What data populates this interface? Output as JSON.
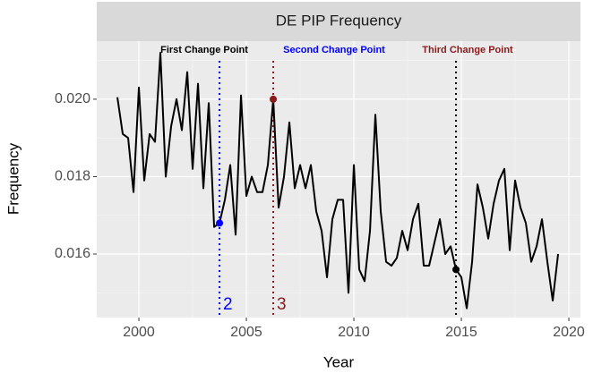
{
  "chart_data": {
    "type": "line",
    "title": "DE PIP Frequency",
    "x_label": "Year",
    "y_label": "Frequency",
    "x": [
      1999,
      1999.25,
      1999.5,
      1999.75,
      2000,
      2000.25,
      2000.5,
      2000.75,
      2001,
      2001.25,
      2001.5,
      2001.75,
      2002,
      2002.25,
      2002.5,
      2002.75,
      2003,
      2003.25,
      2003.5,
      2003.75,
      2004,
      2004.25,
      2004.5,
      2004.75,
      2005,
      2005.25,
      2005.5,
      2005.75,
      2006,
      2006.25,
      2006.5,
      2006.75,
      2007,
      2007.25,
      2007.5,
      2007.75,
      2008,
      2008.25,
      2008.5,
      2008.75,
      2009,
      2009.25,
      2009.5,
      2009.75,
      2010,
      2010.25,
      2010.5,
      2010.75,
      2011,
      2011.25,
      2011.5,
      2011.75,
      2012,
      2012.25,
      2012.5,
      2012.75,
      2013,
      2013.25,
      2013.5,
      2013.75,
      2014,
      2014.25,
      2014.5,
      2014.75,
      2015,
      2015.25,
      2015.5,
      2015.75,
      2016,
      2016.25,
      2016.5,
      2016.75,
      2017,
      2017.25,
      2017.5,
      2017.75,
      2018,
      2018.25,
      2018.5,
      2018.75,
      2019,
      2019.25,
      2019.5
    ],
    "series": [
      {
        "color": "#000000",
        "values": [
          0.02005,
          0.0191,
          0.019,
          0.0176,
          0.0203,
          0.0179,
          0.0191,
          0.0189,
          0.0212,
          0.018,
          0.0193,
          0.02,
          0.0192,
          0.0207,
          0.0182,
          0.0204,
          0.0177,
          0.0199,
          0.0167,
          0.0168,
          0.0174,
          0.0183,
          0.0165,
          0.0201,
          0.0175,
          0.018,
          0.0176,
          0.0176,
          0.0183,
          0.02,
          0.0172,
          0.018,
          0.0194,
          0.0177,
          0.0183,
          0.0177,
          0.0183,
          0.0171,
          0.0166,
          0.0154,
          0.0169,
          0.0174,
          0.0174,
          0.015,
          0.0183,
          0.0156,
          0.0153,
          0.0166,
          0.0196,
          0.0171,
          0.0158,
          0.0157,
          0.0159,
          0.0166,
          0.0161,
          0.0169,
          0.0173,
          0.0157,
          0.0157,
          0.0163,
          0.0169,
          0.016,
          0.0162,
          0.0156,
          0.0154,
          0.0146,
          0.0158,
          0.0178,
          0.0172,
          0.0164,
          0.0173,
          0.0179,
          0.0182,
          0.0161,
          0.0179,
          0.0172,
          0.0168,
          0.0158,
          0.0162,
          0.0169,
          0.0158,
          0.0148,
          0.016
        ]
      }
    ],
    "change_points": [
      {
        "x": 2003.75,
        "name": "First Change Point",
        "color": "#0000ff",
        "label": "2"
      },
      {
        "x": 2006.25,
        "name": "Second Change Point",
        "color": "#8b1a1a",
        "label": "3"
      },
      {
        "x": 2014.75,
        "name": "Third Change Point",
        "color": "#000000"
      }
    ],
    "name_colors": [
      "#000000",
      "#0000ff",
      "#8b1a1a"
    ],
    "xlim": [
      1998.04,
      2020.54
    ],
    "ylim": [
      0.01436,
      0.0215
    ],
    "xticks": [
      2000,
      2005,
      2010,
      2015,
      2020
    ],
    "yticks": [
      {
        "value": 0.016,
        "label": "0.016"
      },
      {
        "value": 0.018,
        "label": "0.018"
      },
      {
        "value": 0.02,
        "label": "0.020"
      }
    ],
    "grid": true
  }
}
